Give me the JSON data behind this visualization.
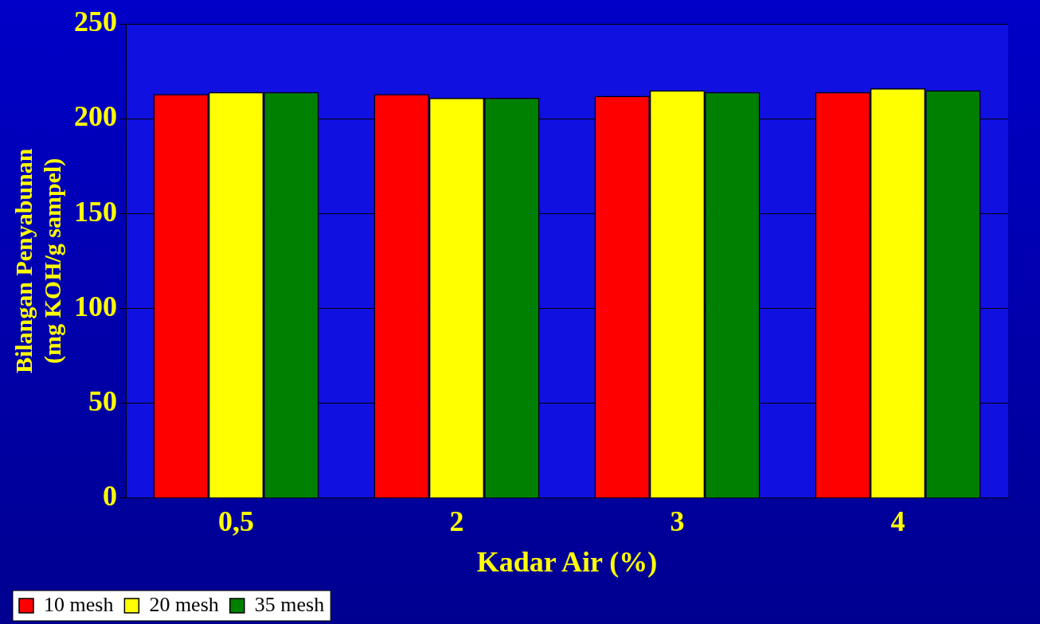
{
  "chart_data": {
    "type": "bar",
    "xlabel": "Kadar Air (%)",
    "ylabel": "Bilangan Penyabunan\n(mg KOH/g sampel)",
    "categories": [
      "0,5",
      "2",
      "3",
      "4"
    ],
    "series": [
      {
        "name": "10 mesh",
        "color": "#ff0000",
        "values": [
          213,
          213,
          212,
          214
        ]
      },
      {
        "name": "20 mesh",
        "color": "#ffff00",
        "values": [
          214,
          211,
          215,
          216
        ]
      },
      {
        "name": "35 mesh",
        "color": "#008000",
        "values": [
          214,
          211,
          214,
          215
        ]
      }
    ],
    "ylim": [
      0,
      250
    ],
    "yticks": [
      0,
      50,
      100,
      150,
      200,
      250
    ],
    "grid": "y",
    "legend": "bottom left"
  }
}
